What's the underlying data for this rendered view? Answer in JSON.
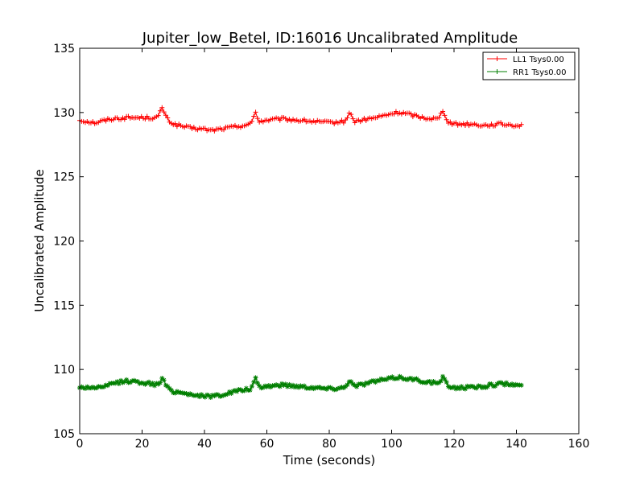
{
  "chart_data": {
    "type": "line",
    "title": "Jupiter_low_Betel, ID:16016 Uncalibrated Amplitude",
    "xlabel": "Time (seconds)",
    "ylabel": "Uncalibrated Amplitude",
    "xlim": [
      0,
      160
    ],
    "ylim": [
      105,
      135
    ],
    "xticks": [
      "0",
      "20",
      "40",
      "60",
      "80",
      "100",
      "120",
      "140",
      "160"
    ],
    "yticks": [
      "105",
      "110",
      "115",
      "120",
      "125",
      "130",
      "135"
    ],
    "grid": false,
    "legend_position": "top-right",
    "series": [
      {
        "name": "LL1 Tsys0.00",
        "color": "#ff0000",
        "marker": "plus",
        "keypoints": [
          [
            0,
            129.4
          ],
          [
            5,
            129.2
          ],
          [
            10,
            129.5
          ],
          [
            15,
            129.6
          ],
          [
            20,
            129.6
          ],
          [
            25,
            129.6
          ],
          [
            26.5,
            130.4
          ],
          [
            28,
            129.5
          ],
          [
            30,
            129.1
          ],
          [
            35,
            128.8
          ],
          [
            40,
            128.7
          ],
          [
            42,
            128.6
          ],
          [
            50,
            128.9
          ],
          [
            55,
            129.1
          ],
          [
            56.3,
            130.1
          ],
          [
            57.5,
            129.3
          ],
          [
            60,
            129.4
          ],
          [
            65,
            129.5
          ],
          [
            70,
            129.4
          ],
          [
            75,
            129.3
          ],
          [
            80,
            129.2
          ],
          [
            85,
            129.3
          ],
          [
            86.5,
            130.0
          ],
          [
            88,
            129.3
          ],
          [
            95,
            129.6
          ],
          [
            100,
            129.9
          ],
          [
            102,
            130.0
          ],
          [
            105,
            129.9
          ],
          [
            110,
            129.6
          ],
          [
            115,
            129.5
          ],
          [
            116.5,
            130.2
          ],
          [
            118,
            129.3
          ],
          [
            120,
            129.1
          ],
          [
            125,
            129.1
          ],
          [
            130,
            129.0
          ],
          [
            135,
            129.1
          ],
          [
            140,
            129.0
          ],
          [
            142,
            129.0
          ]
        ]
      },
      {
        "name": "RR1 Tsys0.00",
        "color": "#007f00",
        "marker": "star",
        "keypoints": [
          [
            0,
            108.6
          ],
          [
            5,
            108.6
          ],
          [
            8,
            108.6
          ],
          [
            10,
            108.9
          ],
          [
            15,
            109.1
          ],
          [
            20,
            109.0
          ],
          [
            25,
            108.8
          ],
          [
            26.5,
            109.3
          ],
          [
            28,
            108.6
          ],
          [
            30,
            108.3
          ],
          [
            35,
            108.1
          ],
          [
            40,
            107.9
          ],
          [
            45,
            108.0
          ],
          [
            50,
            108.3
          ],
          [
            55,
            108.5
          ],
          [
            56.3,
            109.3
          ],
          [
            57.5,
            108.6
          ],
          [
            60,
            108.7
          ],
          [
            65,
            108.8
          ],
          [
            70,
            108.7
          ],
          [
            75,
            108.6
          ],
          [
            80,
            108.5
          ],
          [
            85,
            108.6
          ],
          [
            86.5,
            109.2
          ],
          [
            88,
            108.7
          ],
          [
            95,
            109.1
          ],
          [
            100,
            109.3
          ],
          [
            102,
            109.4
          ],
          [
            105,
            109.3
          ],
          [
            110,
            109.1
          ],
          [
            115,
            108.9
          ],
          [
            116.5,
            109.4
          ],
          [
            118,
            108.7
          ],
          [
            120,
            108.6
          ],
          [
            125,
            108.6
          ],
          [
            130,
            108.7
          ],
          [
            135,
            108.9
          ],
          [
            140,
            108.8
          ],
          [
            142,
            108.7
          ]
        ]
      }
    ]
  }
}
